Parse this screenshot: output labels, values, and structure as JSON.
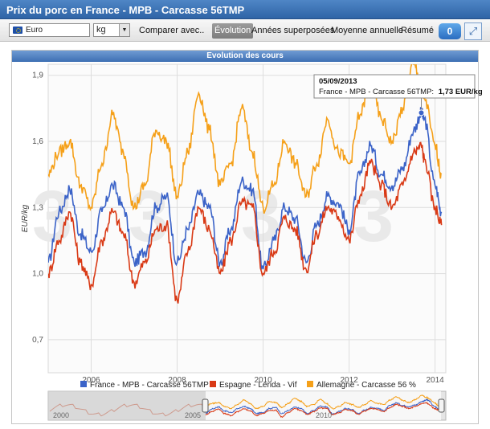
{
  "window": {
    "title": "Prix du porc en France - MPB - Carcasse 56TMP"
  },
  "toolbar": {
    "currency": "Euro",
    "unit": "kg",
    "buttons": [
      "Comparer avec..",
      "Évolution",
      "Années superposées",
      "Moyenne annuelle",
      "Résumé"
    ],
    "active": "Évolution",
    "info_badge": "0"
  },
  "panel": {
    "header": "Evolution des cours"
  },
  "tooltip": {
    "date": "05/09/2013",
    "series": "France - MPB - Carcasse 56TMP:",
    "value": "1,73 EUR/kg"
  },
  "navigator": {
    "labels": [
      "2000",
      "2005",
      "2010"
    ]
  },
  "colors": {
    "france": "#3b63c8",
    "espagne": "#d93a16",
    "allemagne": "#f5a019",
    "accent": "#2f64a6"
  },
  "chart_data": {
    "type": "line",
    "ylabel": "EUR/kg",
    "ylim": [
      0.55,
      1.95
    ],
    "xlim": [
      2005.0,
      2014.25
    ],
    "yticks": [
      "0,7",
      "1,0",
      "1,3",
      "1,6",
      "1,9"
    ],
    "ytick_values": [
      0.7,
      1.0,
      1.3,
      1.6,
      1.9
    ],
    "xticks": [
      "2006",
      "2008",
      "2010",
      "2012",
      "2014"
    ],
    "xtick_values": [
      2006,
      2008,
      2010,
      2012,
      2014
    ],
    "grid": true,
    "legend_position": "bottom",
    "series": [
      {
        "name": "France - MPB - Carcasse 56TMP",
        "color": "#3b63c8",
        "x": [
          2005.0,
          2005.25,
          2005.5,
          2005.75,
          2006.0,
          2006.25,
          2006.5,
          2006.75,
          2007.0,
          2007.25,
          2007.5,
          2007.75,
          2008.0,
          2008.25,
          2008.5,
          2008.75,
          2009.0,
          2009.25,
          2009.5,
          2009.75,
          2010.0,
          2010.25,
          2010.5,
          2010.75,
          2011.0,
          2011.25,
          2011.5,
          2011.75,
          2012.0,
          2012.25,
          2012.5,
          2012.75,
          2013.0,
          2013.25,
          2013.5,
          2013.68,
          2013.75,
          2014.0,
          2014.15
        ],
        "y": [
          1.05,
          1.28,
          1.38,
          1.18,
          1.1,
          1.28,
          1.4,
          1.3,
          1.05,
          1.1,
          1.3,
          1.35,
          1.05,
          1.2,
          1.36,
          1.3,
          1.05,
          1.2,
          1.42,
          1.38,
          1.02,
          1.15,
          1.3,
          1.25,
          1.05,
          1.22,
          1.35,
          1.32,
          1.2,
          1.45,
          1.58,
          1.45,
          1.4,
          1.48,
          1.65,
          1.73,
          1.7,
          1.4,
          1.28
        ]
      },
      {
        "name": "Espagne - Lerida - Vif",
        "color": "#d93a16",
        "x": [
          2005.0,
          2005.25,
          2005.5,
          2005.75,
          2006.0,
          2006.25,
          2006.5,
          2006.75,
          2007.0,
          2007.25,
          2007.5,
          2007.75,
          2008.0,
          2008.25,
          2008.5,
          2008.75,
          2009.0,
          2009.25,
          2009.5,
          2009.75,
          2010.0,
          2010.25,
          2010.5,
          2010.75,
          2011.0,
          2011.25,
          2011.5,
          2011.75,
          2012.0,
          2012.25,
          2012.5,
          2012.75,
          2013.0,
          2013.25,
          2013.5,
          2013.68,
          2013.75,
          2014.0,
          2014.15
        ],
        "y": [
          1.0,
          1.15,
          1.28,
          1.05,
          0.95,
          1.15,
          1.28,
          1.18,
          0.96,
          1.05,
          1.2,
          1.22,
          0.88,
          1.1,
          1.3,
          1.2,
          1.0,
          1.15,
          1.32,
          1.3,
          1.0,
          1.1,
          1.25,
          1.2,
          1.02,
          1.18,
          1.3,
          1.26,
          1.15,
          1.35,
          1.5,
          1.4,
          1.3,
          1.4,
          1.55,
          1.58,
          1.52,
          1.3,
          1.22
        ]
      },
      {
        "name": "Allemagne - Carcasse 56 %",
        "color": "#f5a019",
        "x": [
          2005.0,
          2005.25,
          2005.5,
          2005.75,
          2006.0,
          2006.25,
          2006.5,
          2006.75,
          2007.0,
          2007.25,
          2007.5,
          2007.75,
          2008.0,
          2008.25,
          2008.5,
          2008.75,
          2009.0,
          2009.25,
          2009.5,
          2009.75,
          2010.0,
          2010.25,
          2010.5,
          2010.75,
          2011.0,
          2011.25,
          2011.5,
          2011.75,
          2012.0,
          2012.25,
          2012.5,
          2012.75,
          2013.0,
          2013.25,
          2013.5,
          2013.68,
          2013.75,
          2014.0,
          2014.15
        ],
        "y": [
          1.45,
          1.55,
          1.6,
          1.4,
          1.3,
          1.5,
          1.72,
          1.55,
          1.3,
          1.4,
          1.65,
          1.6,
          1.35,
          1.55,
          1.82,
          1.65,
          1.4,
          1.5,
          1.75,
          1.55,
          1.3,
          1.4,
          1.6,
          1.5,
          1.35,
          1.5,
          1.7,
          1.55,
          1.5,
          1.72,
          1.88,
          1.7,
          1.6,
          1.75,
          1.95,
          1.85,
          1.8,
          1.58,
          1.45
        ]
      }
    ],
    "highlight": {
      "series": 0,
      "x": 2013.68,
      "y": 1.73
    }
  }
}
